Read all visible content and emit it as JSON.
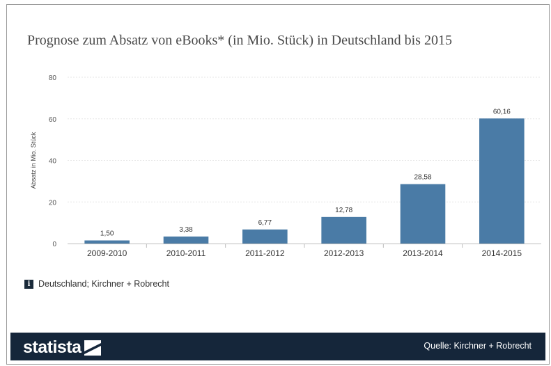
{
  "title": "Prognose zum Absatz von eBooks* (in Mio. Stück) in Deutschland bis 2015",
  "source_note": "Deutschland; Kirchner + Robrecht",
  "info_icon_glyph": "i",
  "footer": {
    "logo_text": "statista",
    "logo_icon": "statista-logo-mark",
    "quelle": "Quelle: Kirchner + Robrecht",
    "background": "#15263a"
  },
  "chart_data": {
    "type": "bar",
    "title": "Prognose zum Absatz von eBooks* (in Mio. Stück) in Deutschland bis 2015",
    "xlabel": "",
    "ylabel": "Absatz in Mio. Stück",
    "categories": [
      "2009-2010",
      "2010-2011",
      "2011-2012",
      "2012-2013",
      "2013-2014",
      "2014-2015"
    ],
    "values": [
      1.5,
      3.38,
      6.77,
      12.78,
      28.58,
      60.16
    ],
    "data_labels": [
      "1,50",
      "3,38",
      "6,77",
      "12,78",
      "28,58",
      "60,16"
    ],
    "yticks": [
      0,
      20,
      40,
      60,
      80
    ],
    "ylim": [
      0,
      80
    ],
    "grid": true,
    "legend": "none",
    "bar_color": "#4a7ba6"
  }
}
